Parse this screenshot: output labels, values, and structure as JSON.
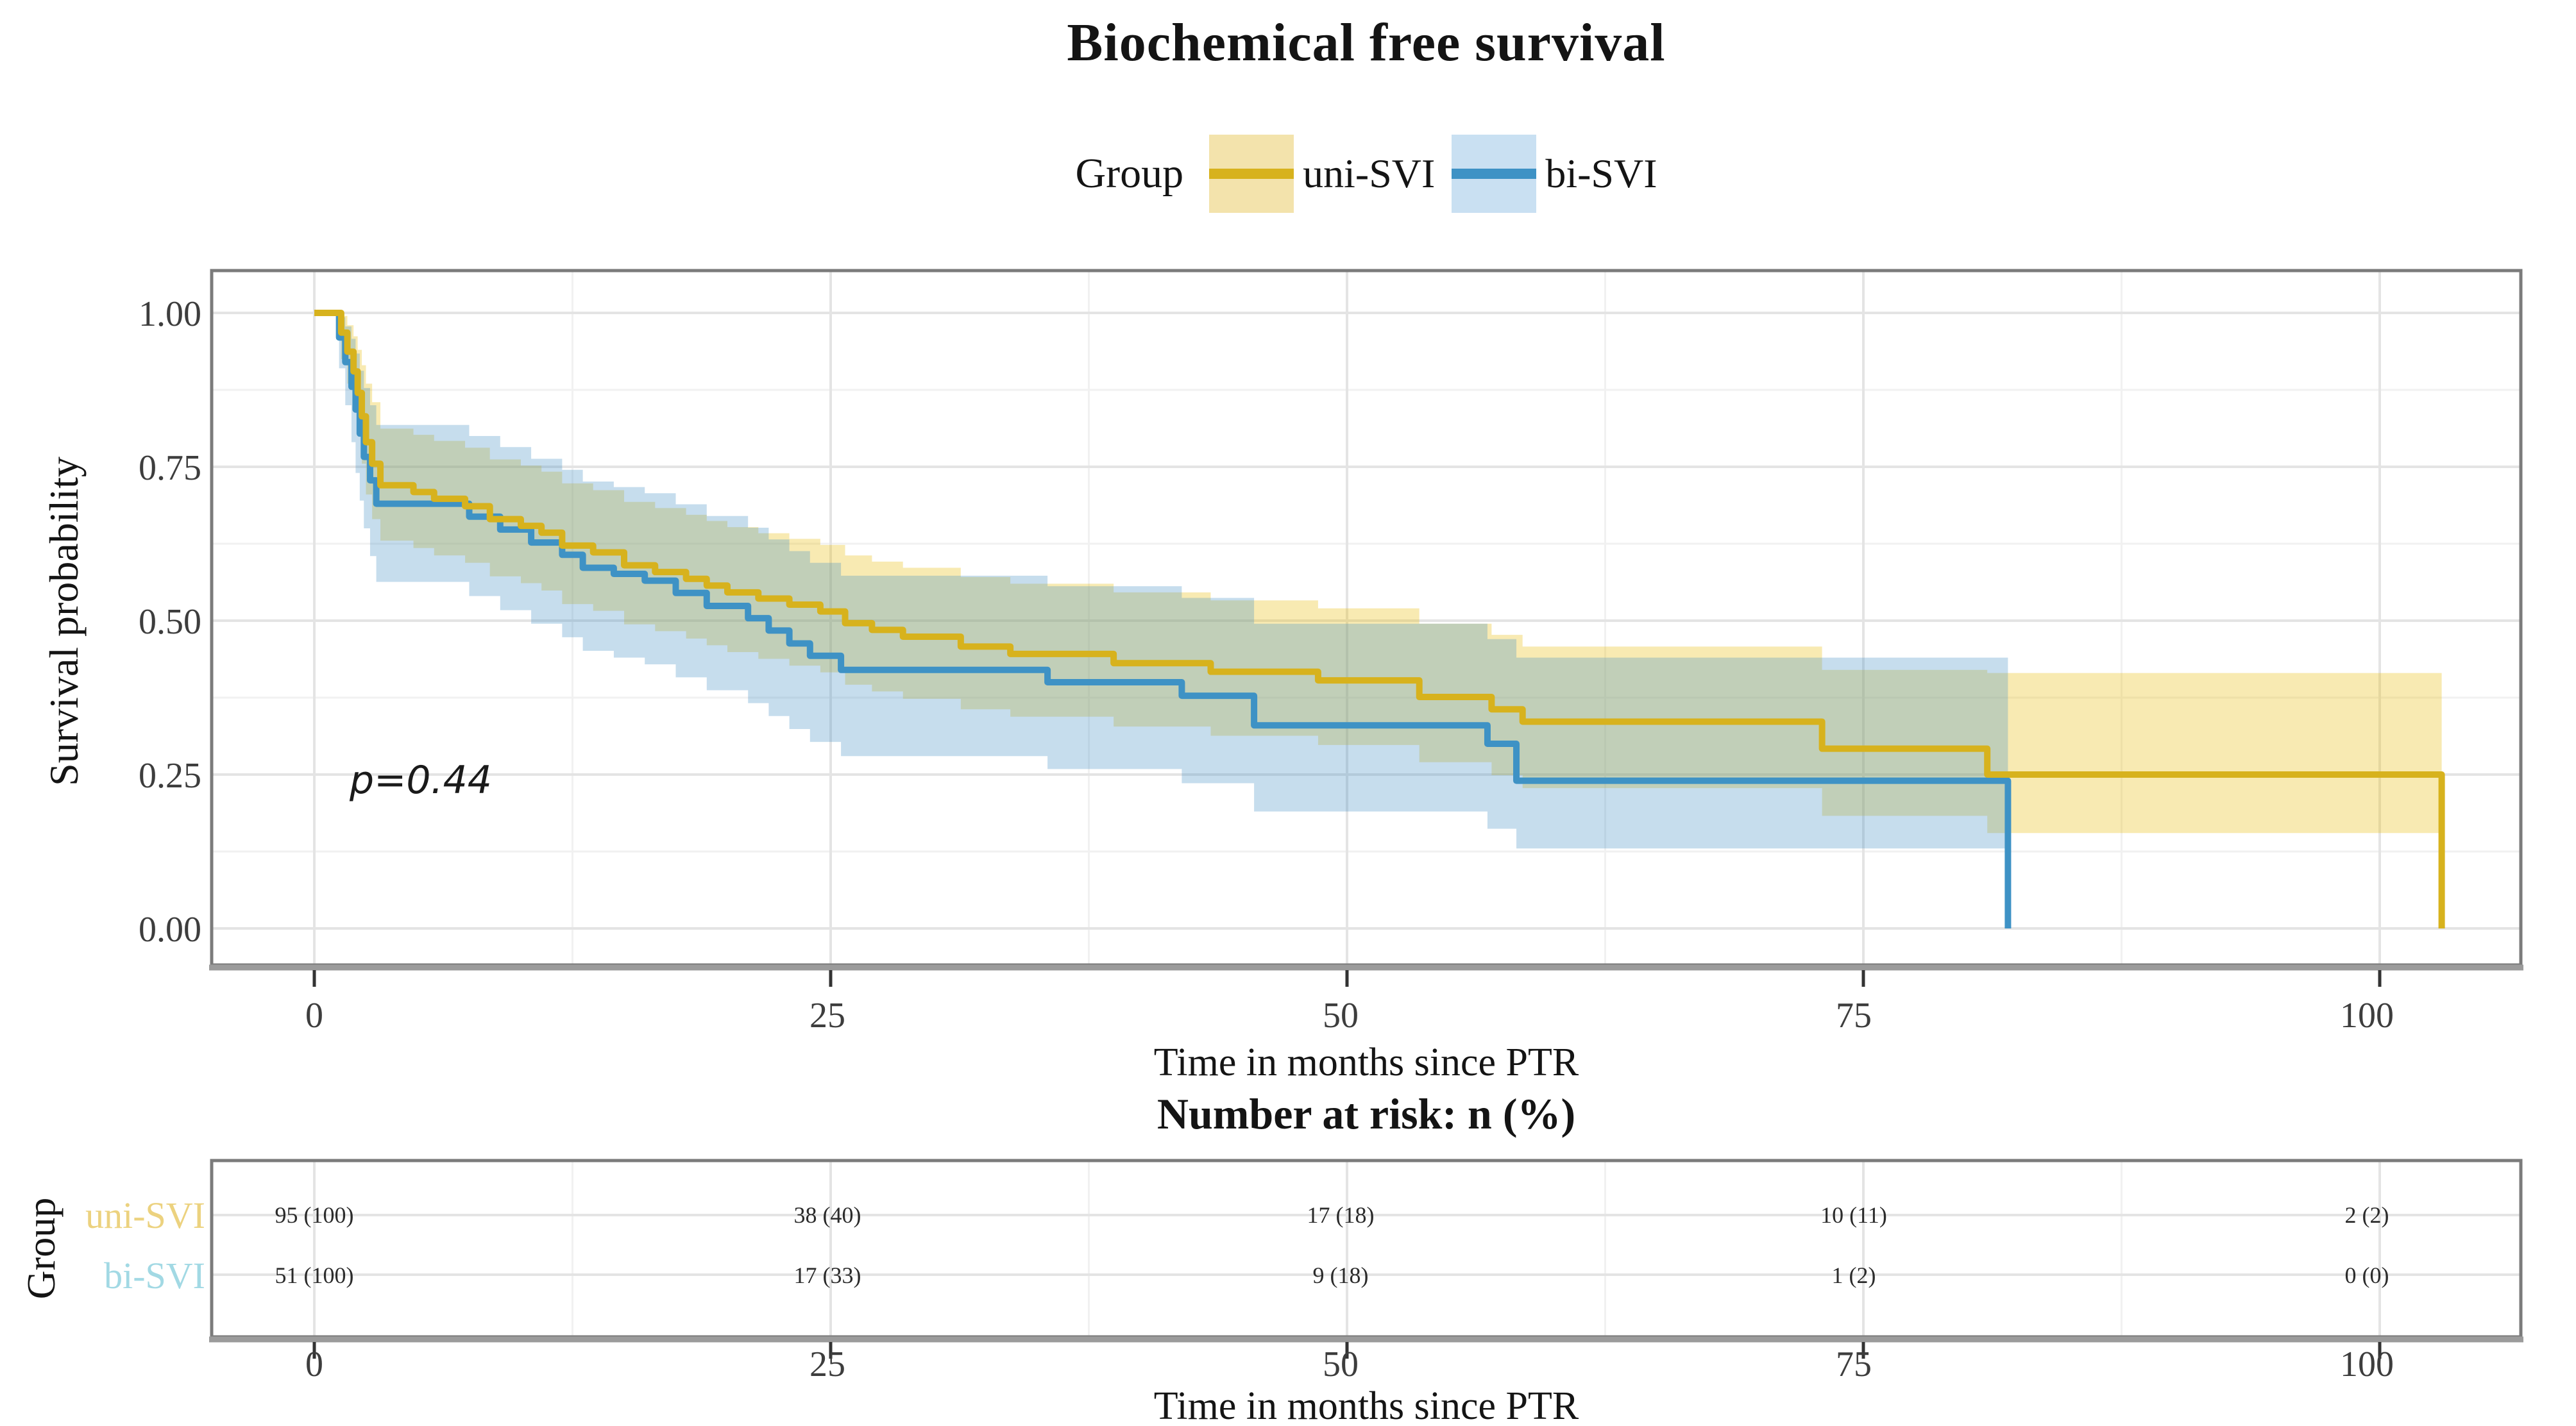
{
  "title": "Biochemical free survival",
  "annotation": {
    "p_value": "p=0.44"
  },
  "colors": {
    "uni_line": "#D7B21D",
    "uni_band": "rgba(231,184,0,0.30)",
    "uni_key_band": "#F3E3AC",
    "bi_line": "#3E92C5",
    "bi_band": "rgba(78,148,200,0.32)",
    "bi_key_band": "#C9E0F2",
    "uni_row_label": "#ECD27F",
    "bi_row_label": "#A2D9E4",
    "grid_major": "#e4e4e4",
    "grid_minor": "#f1f1f1",
    "panel_border": "#7b7b7b",
    "axis_line": "#9b9b9b",
    "tick_mark": "#333333"
  },
  "chart_data": {
    "type": "line",
    "subtype": "kaplan-meier-step",
    "title": "Biochemical free survival",
    "legend_title": "Group",
    "legend_position": "top",
    "xlabel": "Time in months since PTR",
    "ylabel": "Survival probability",
    "xlim": [
      0,
      107
    ],
    "ylim": [
      0,
      1
    ],
    "grid": true,
    "x_ticks": [
      0,
      25,
      50,
      75,
      100
    ],
    "x_tick_labels": [
      "0",
      "25",
      "50",
      "75",
      "100"
    ],
    "y_ticks": [
      1.0,
      0.75,
      0.5,
      0.25,
      0.0
    ],
    "y_tick_labels": [
      "1.00",
      "0.75",
      "0.50",
      "0.25",
      "0.00"
    ],
    "p_value": "p=0.44",
    "series": [
      {
        "name": "uni-SVI",
        "n": 95,
        "points": [
          [
            0,
            1.0,
            1.0,
            1.0
          ],
          [
            1.3,
            0.968,
            0.925,
            0.995
          ],
          [
            1.6,
            0.937,
            0.885,
            0.98
          ],
          [
            1.9,
            0.905,
            0.845,
            0.962
          ],
          [
            2.1,
            0.87,
            0.8,
            0.94
          ],
          [
            2.3,
            0.832,
            0.755,
            0.915
          ],
          [
            2.5,
            0.79,
            0.705,
            0.885
          ],
          [
            2.8,
            0.755,
            0.665,
            0.855
          ],
          [
            3.2,
            0.72,
            0.63,
            0.812
          ],
          [
            4.8,
            0.709,
            0.618,
            0.802
          ],
          [
            5.8,
            0.698,
            0.606,
            0.792
          ],
          [
            7.3,
            0.686,
            0.594,
            0.781
          ],
          [
            8.5,
            0.665,
            0.572,
            0.762
          ],
          [
            10,
            0.654,
            0.561,
            0.752
          ],
          [
            11,
            0.643,
            0.549,
            0.742
          ],
          [
            12,
            0.622,
            0.527,
            0.723
          ],
          [
            13.5,
            0.611,
            0.516,
            0.712
          ],
          [
            15,
            0.59,
            0.494,
            0.693
          ],
          [
            16.5,
            0.579,
            0.483,
            0.683
          ],
          [
            18,
            0.568,
            0.471,
            0.672
          ],
          [
            19,
            0.557,
            0.46,
            0.662
          ],
          [
            20,
            0.546,
            0.449,
            0.652
          ],
          [
            21.5,
            0.536,
            0.438,
            0.642
          ],
          [
            23,
            0.526,
            0.427,
            0.633
          ],
          [
            24.5,
            0.515,
            0.416,
            0.623
          ],
          [
            25.7,
            0.496,
            0.396,
            0.606
          ],
          [
            27,
            0.485,
            0.385,
            0.596
          ],
          [
            28.5,
            0.474,
            0.373,
            0.586
          ],
          [
            31.3,
            0.458,
            0.356,
            0.571
          ],
          [
            33.7,
            0.446,
            0.344,
            0.56
          ],
          [
            38.7,
            0.431,
            0.328,
            0.546
          ],
          [
            43.4,
            0.417,
            0.313,
            0.533
          ],
          [
            48.6,
            0.403,
            0.298,
            0.52
          ],
          [
            53.5,
            0.376,
            0.27,
            0.495
          ],
          [
            57,
            0.356,
            0.249,
            0.477
          ],
          [
            58.5,
            0.336,
            0.228,
            0.458
          ],
          [
            73,
            0.292,
            0.183,
            0.42
          ],
          [
            81,
            0.25,
            0.155,
            0.415
          ],
          [
            103,
            0.0,
            0.155,
            0.415
          ]
        ]
      },
      {
        "name": "bi-SVI",
        "n": 51,
        "points": [
          [
            0,
            1.0,
            1.0,
            1.0
          ],
          [
            1.2,
            0.96,
            0.91,
            0.993
          ],
          [
            1.5,
            0.92,
            0.85,
            0.978
          ],
          [
            1.8,
            0.88,
            0.79,
            0.958
          ],
          [
            2.0,
            0.843,
            0.74,
            0.934
          ],
          [
            2.2,
            0.804,
            0.695,
            0.906
          ],
          [
            2.4,
            0.766,
            0.65,
            0.878
          ],
          [
            2.7,
            0.728,
            0.605,
            0.85
          ],
          [
            3.0,
            0.69,
            0.563,
            0.818
          ],
          [
            7.5,
            0.669,
            0.54,
            0.8
          ],
          [
            9,
            0.648,
            0.517,
            0.782
          ],
          [
            10.5,
            0.627,
            0.495,
            0.763
          ],
          [
            12,
            0.607,
            0.473,
            0.745
          ],
          [
            13,
            0.586,
            0.451,
            0.726
          ],
          [
            14.5,
            0.576,
            0.44,
            0.717
          ],
          [
            16,
            0.565,
            0.429,
            0.707
          ],
          [
            17.5,
            0.545,
            0.408,
            0.689
          ],
          [
            19,
            0.524,
            0.387,
            0.67
          ],
          [
            21,
            0.504,
            0.366,
            0.651
          ],
          [
            22,
            0.484,
            0.345,
            0.632
          ],
          [
            23,
            0.463,
            0.324,
            0.613
          ],
          [
            24,
            0.443,
            0.303,
            0.594
          ],
          [
            25.5,
            0.42,
            0.28,
            0.573
          ],
          [
            35.5,
            0.4,
            0.259,
            0.556
          ],
          [
            42,
            0.378,
            0.236,
            0.537
          ],
          [
            45.5,
            0.33,
            0.19,
            0.495
          ],
          [
            56.8,
            0.3,
            0.162,
            0.47
          ],
          [
            58.2,
            0.24,
            0.13,
            0.44
          ],
          [
            82,
            0.0,
            0.13,
            0.44
          ]
        ]
      }
    ]
  },
  "risk_table": {
    "title": "Number at risk: n (%)",
    "group_label": "Group",
    "xlabel": "Time in months since PTR",
    "ticks": [
      0,
      25,
      50,
      75,
      100
    ],
    "tick_labels": [
      "0",
      "25",
      "50",
      "75",
      "100"
    ],
    "rows": [
      {
        "label": "uni-SVI",
        "values": [
          "95 (100)",
          "38 (40)",
          "17 (18)",
          "10 (11)",
          "2 (2)"
        ]
      },
      {
        "label": "bi-SVI",
        "values": [
          "51 (100)",
          "17 (33)",
          "9 (18)",
          "1 (2)",
          "0 (0)"
        ]
      }
    ]
  }
}
